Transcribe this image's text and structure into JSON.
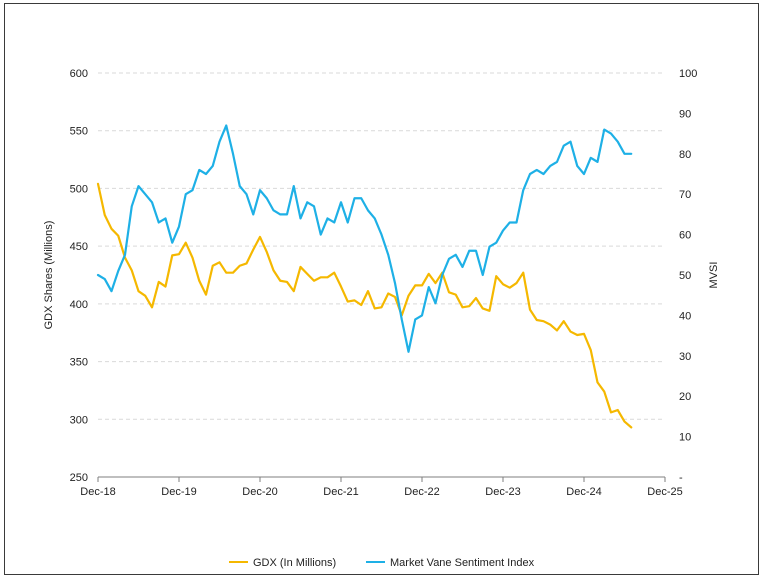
{
  "chart_data": {
    "type": "line",
    "title": "",
    "xlabel": "",
    "y_left_label": "GDX Shares (Millions)",
    "y_right_label": "MVSI",
    "x_ticks": [
      "Dec-18",
      "Dec-19",
      "Dec-20",
      "Dec-21",
      "Dec-22",
      "Dec-23",
      "Dec-24",
      "Dec-25"
    ],
    "y_left_ticks": [
      "600",
      "550",
      "500",
      "450",
      "400",
      "350",
      "300",
      "250"
    ],
    "y_right_ticks": [
      "100",
      "90",
      "80",
      "70",
      "60",
      "50",
      "40",
      "30",
      "20",
      "10",
      "-"
    ],
    "y_left_range": [
      250,
      600
    ],
    "y_right_range": [
      0,
      100
    ],
    "x_range_months": [
      0,
      84
    ],
    "grid": "horizontal-dashed",
    "legend_position": "bottom",
    "series": [
      {
        "name": "GDX (In Millions)",
        "axis": "left",
        "color": "#F5B800",
        "points": [
          [
            0,
            504
          ],
          [
            1,
            477
          ],
          [
            2,
            465
          ],
          [
            3,
            459
          ],
          [
            4,
            440
          ],
          [
            5,
            429
          ],
          [
            6,
            411
          ],
          [
            7,
            407
          ],
          [
            8,
            397
          ],
          [
            9,
            419
          ],
          [
            10,
            415
          ],
          [
            11,
            442
          ],
          [
            12,
            443
          ],
          [
            13,
            453
          ],
          [
            14,
            440
          ],
          [
            15,
            420
          ],
          [
            16,
            408
          ],
          [
            17,
            433
          ],
          [
            18,
            436
          ],
          [
            19,
            427
          ],
          [
            20,
            427
          ],
          [
            21,
            433
          ],
          [
            22,
            435
          ],
          [
            23,
            447
          ],
          [
            24,
            458
          ],
          [
            25,
            445
          ],
          [
            26,
            429
          ],
          [
            27,
            420
          ],
          [
            28,
            419
          ],
          [
            29,
            411
          ],
          [
            30,
            432
          ],
          [
            31,
            426
          ],
          [
            32,
            420
          ],
          [
            33,
            423
          ],
          [
            34,
            423
          ],
          [
            35,
            427
          ],
          [
            36,
            415
          ],
          [
            37,
            402
          ],
          [
            38,
            403
          ],
          [
            39,
            399
          ],
          [
            40,
            411
          ],
          [
            41,
            396
          ],
          [
            42,
            397
          ],
          [
            43,
            409
          ],
          [
            44,
            406
          ],
          [
            45,
            390
          ],
          [
            46,
            407
          ],
          [
            47,
            416
          ],
          [
            48,
            416
          ],
          [
            49,
            426
          ],
          [
            50,
            418
          ],
          [
            51,
            427
          ],
          [
            52,
            410
          ],
          [
            53,
            408
          ],
          [
            54,
            397
          ],
          [
            55,
            398
          ],
          [
            56,
            405
          ],
          [
            57,
            396
          ],
          [
            58,
            394
          ],
          [
            59,
            424
          ],
          [
            60,
            417
          ],
          [
            61,
            414
          ],
          [
            62,
            418
          ],
          [
            63,
            427
          ],
          [
            64,
            395
          ],
          [
            65,
            386
          ],
          [
            66,
            385
          ],
          [
            67,
            382
          ],
          [
            68,
            377
          ],
          [
            69,
            385
          ],
          [
            70,
            376
          ],
          [
            71,
            373
          ],
          [
            72,
            374
          ],
          [
            73,
            360
          ],
          [
            74,
            332
          ],
          [
            75,
            324
          ],
          [
            76,
            306
          ],
          [
            77,
            308
          ],
          [
            78,
            298
          ],
          [
            79,
            293
          ]
        ]
      },
      {
        "name": "Market Vane Sentiment Index",
        "axis": "right",
        "color": "#1EB0E6",
        "points": [
          [
            0,
            50
          ],
          [
            1,
            49
          ],
          [
            2,
            46
          ],
          [
            3,
            51
          ],
          [
            4,
            55
          ],
          [
            5,
            67
          ],
          [
            6,
            72
          ],
          [
            7,
            70
          ],
          [
            8,
            68
          ],
          [
            9,
            63
          ],
          [
            10,
            64
          ],
          [
            11,
            58
          ],
          [
            12,
            62
          ],
          [
            13,
            70
          ],
          [
            14,
            71
          ],
          [
            15,
            76
          ],
          [
            16,
            75
          ],
          [
            17,
            77
          ],
          [
            18,
            83
          ],
          [
            19,
            87
          ],
          [
            20,
            80
          ],
          [
            21,
            72
          ],
          [
            22,
            70
          ],
          [
            23,
            65
          ],
          [
            24,
            71
          ],
          [
            25,
            69
          ],
          [
            26,
            66
          ],
          [
            27,
            65
          ],
          [
            28,
            65
          ],
          [
            29,
            72
          ],
          [
            30,
            64
          ],
          [
            31,
            68
          ],
          [
            32,
            67
          ],
          [
            33,
            60
          ],
          [
            34,
            64
          ],
          [
            35,
            63
          ],
          [
            36,
            68
          ],
          [
            37,
            63
          ],
          [
            38,
            69
          ],
          [
            39,
            69
          ],
          [
            40,
            66
          ],
          [
            41,
            64
          ],
          [
            42,
            60
          ],
          [
            43,
            55
          ],
          [
            44,
            48
          ],
          [
            45,
            39
          ],
          [
            46,
            31
          ],
          [
            47,
            39
          ],
          [
            48,
            40
          ],
          [
            49,
            47
          ],
          [
            50,
            43
          ],
          [
            51,
            50
          ],
          [
            52,
            54
          ],
          [
            53,
            55
          ],
          [
            54,
            52
          ],
          [
            55,
            56
          ],
          [
            56,
            56
          ],
          [
            57,
            50
          ],
          [
            58,
            57
          ],
          [
            59,
            58
          ],
          [
            60,
            61
          ],
          [
            61,
            63
          ],
          [
            62,
            63
          ],
          [
            63,
            71
          ],
          [
            64,
            75
          ],
          [
            65,
            76
          ],
          [
            66,
            75
          ],
          [
            67,
            77
          ],
          [
            68,
            78
          ],
          [
            69,
            82
          ],
          [
            70,
            83
          ],
          [
            71,
            77
          ],
          [
            72,
            75
          ],
          [
            73,
            79
          ],
          [
            74,
            78
          ],
          [
            75,
            86
          ],
          [
            76,
            85
          ],
          [
            77,
            83
          ],
          [
            78,
            80
          ],
          [
            79,
            80
          ]
        ]
      }
    ]
  }
}
